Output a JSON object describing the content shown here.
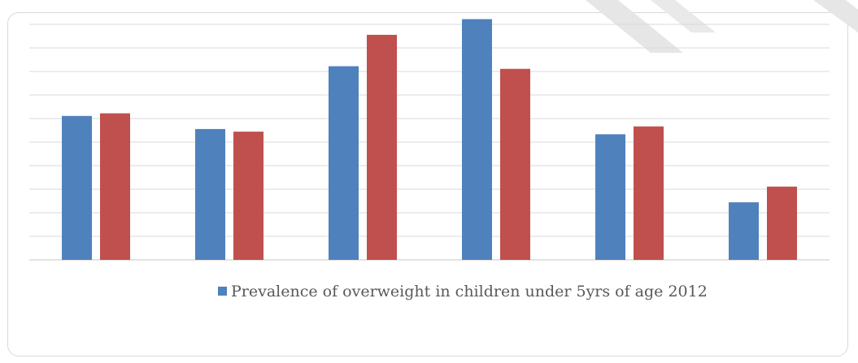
{
  "chart_data": {
    "type": "bar",
    "title": "",
    "xlabel": "",
    "ylabel": "",
    "categories": [
      "",
      "",
      "",
      "",
      "",
      ""
    ],
    "ylim": [
      0,
      9
    ],
    "grid": true,
    "legend_position": "bottom-center",
    "series": [
      {
        "name": "Prevalence of overweight in children under 5yrs of age 2012",
        "color": "#4f81bd",
        "values": [
          5.5,
          5.0,
          7.4,
          9.2,
          4.8,
          2.2
        ]
      },
      {
        "name": "",
        "color": "#c0504d",
        "values": [
          5.6,
          4.9,
          8.6,
          7.3,
          5.1,
          2.8
        ]
      }
    ]
  },
  "colors": {
    "grid": "#d9d9d9",
    "frame_border": "#d9d9d9",
    "watermark": "#e6e6e6"
  }
}
